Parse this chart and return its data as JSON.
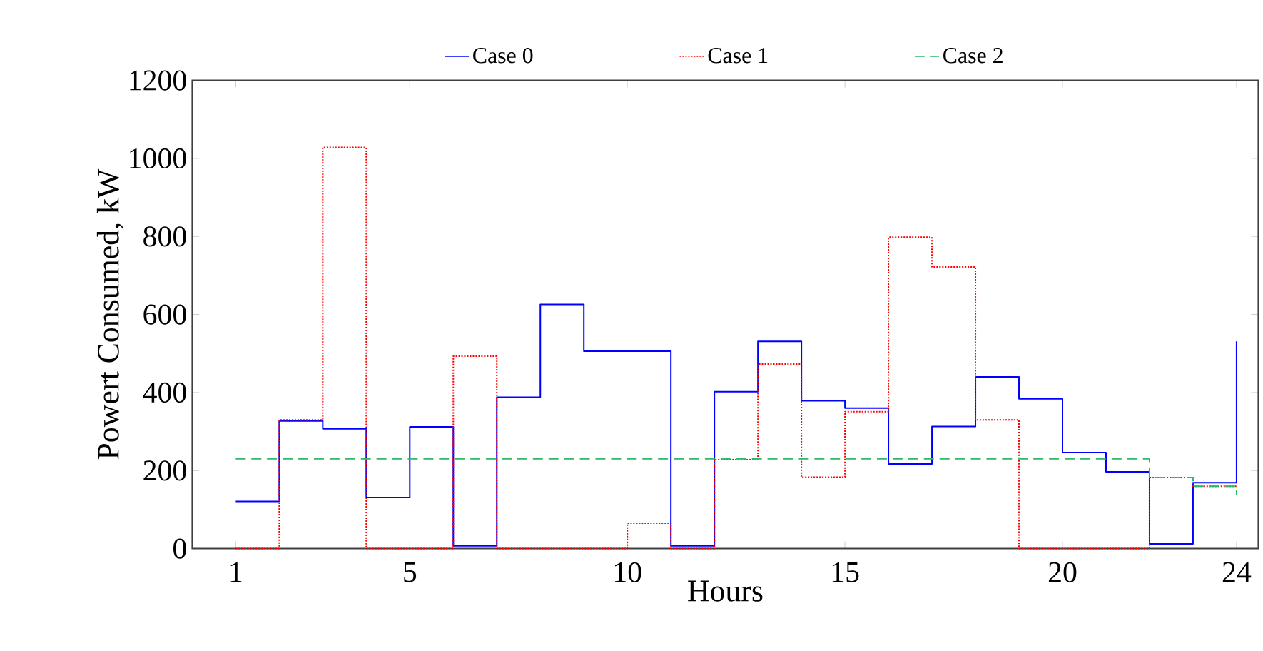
{
  "chart_data": {
    "type": "step",
    "xlabel": "Hours",
    "ylabel": "Powert Consumed, kW",
    "x": [
      1,
      2,
      3,
      4,
      5,
      6,
      7,
      8,
      9,
      10,
      11,
      12,
      13,
      14,
      15,
      16,
      17,
      18,
      19,
      20,
      21,
      22,
      23,
      24
    ],
    "series": [
      {
        "name": "Case 0",
        "color": "#0000ff",
        "line_style": "solid",
        "values": [
          121,
          327,
          307,
          131,
          312,
          7,
          388,
          626,
          506,
          506,
          7,
          402,
          531,
          379,
          360,
          217,
          313,
          440,
          384,
          246,
          197,
          12,
          169,
          531
        ]
      },
      {
        "name": "Case 1",
        "color": "#ff0000",
        "line_style": "dotted",
        "values": [
          0,
          330,
          1028,
          0,
          0,
          493,
          0,
          0,
          0,
          65,
          0,
          228,
          473,
          183,
          351,
          798,
          722,
          330,
          0,
          0,
          0,
          182,
          160,
          160
        ]
      },
      {
        "name": "Case 2",
        "color": "#2eb86b",
        "line_style": "dashed",
        "values": [
          230,
          230,
          230,
          230,
          230,
          230,
          230,
          230,
          230,
          230,
          230,
          230,
          230,
          230,
          230,
          230,
          230,
          230,
          230,
          230,
          230,
          182,
          160,
          138
        ]
      }
    ],
    "xlim": [
      0,
      24.5
    ],
    "xticks": [
      1,
      5,
      10,
      15,
      20,
      24
    ],
    "ylim": [
      0,
      1200
    ],
    "yticks": [
      0,
      200,
      400,
      600,
      800,
      1000,
      1200
    ],
    "grid": false,
    "legend": "top"
  }
}
